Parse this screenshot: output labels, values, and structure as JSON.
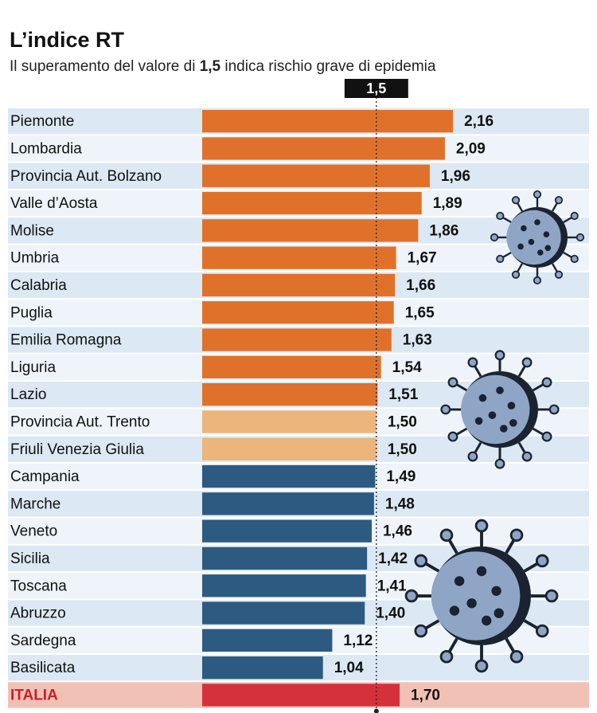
{
  "chart_data": {
    "type": "hbar",
    "title": "L’indice RT",
    "subtitle": [
      "Il superamento del valore di ",
      "1,5",
      " indica rischio grave di epidemia"
    ],
    "categories": [
      "Piemonte",
      "Lombardia",
      "Provincia Aut. Bolzano",
      "Valle d’Aosta",
      "Molise",
      "Umbria",
      "Calabria",
      "Puglia",
      "Emilia Romagna",
      "Liguria",
      "Lazio",
      "Provincia Aut. Trento",
      "Friuli Venezia Giulia",
      "Campania",
      "Marche",
      "Veneto",
      "Sicilia",
      "Toscana",
      "Abruzzo",
      "Sardegna",
      "Basilicata",
      "ITALIA"
    ],
    "values": [
      2.16,
      2.09,
      1.96,
      1.89,
      1.86,
      1.67,
      1.66,
      1.65,
      1.63,
      1.54,
      1.51,
      1.5,
      1.5,
      1.49,
      1.48,
      1.46,
      1.42,
      1.41,
      1.4,
      1.12,
      1.04,
      1.7
    ],
    "value_labels": [
      "2,16",
      "2,09",
      "1,96",
      "1,89",
      "1,86",
      "1,67",
      "1,66",
      "1,65",
      "1,63",
      "1,54",
      "1,51",
      "1,50",
      "1,50",
      "1,49",
      "1,48",
      "1,46",
      "1,42",
      "1,41",
      "1,40",
      "1,12",
      "1,04",
      "1,70"
    ],
    "colors": [
      "#e0712b",
      "#e0712b",
      "#e0712b",
      "#e0712b",
      "#e0712b",
      "#e0712b",
      "#e0712b",
      "#e0712b",
      "#e0712b",
      "#e0712b",
      "#e0712b",
      "#ecb57c",
      "#ecb57c",
      "#2d5a80",
      "#2d5a80",
      "#2d5a80",
      "#2d5a80",
      "#2d5a80",
      "#2d5a80",
      "#2d5a80",
      "#2d5a80",
      "#d5313b"
    ],
    "threshold": {
      "value": 1.5,
      "label": "1,5"
    },
    "xlim": [
      0,
      3.4
    ],
    "highlight_last": true
  }
}
